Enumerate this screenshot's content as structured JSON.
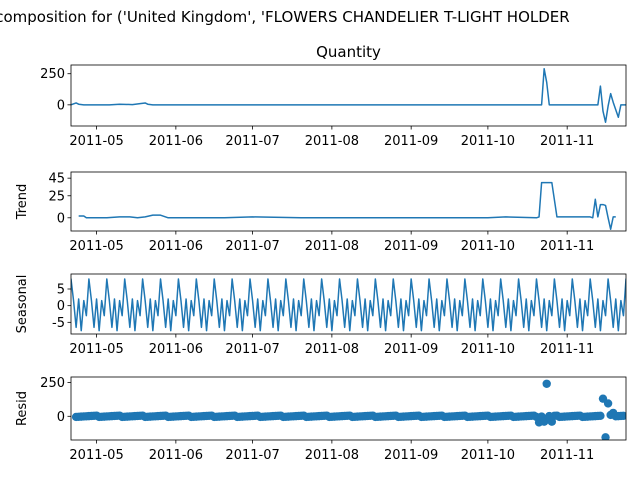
{
  "figure": {
    "suptitle": "ecomposition for ('United Kingdom', 'FLOWERS CHANDELIER T-LIGHT HOLDER",
    "line_color": "#1f77b4"
  },
  "chart_data": [
    {
      "type": "line",
      "title": "Quantity",
      "ylabel": "",
      "xrange": [
        "2011-04-21",
        "2011-11-24"
      ],
      "ylim": [
        -170,
        320
      ],
      "yticks": [
        0,
        250
      ],
      "xticks": [
        {
          "date": "2011-05-01",
          "label": "2011-05"
        },
        {
          "date": "2011-06-01",
          "label": "2011-06"
        },
        {
          "date": "2011-07-01",
          "label": "2011-07"
        },
        {
          "date": "2011-08-01",
          "label": "2011-08"
        },
        {
          "date": "2011-09-01",
          "label": "2011-09"
        },
        {
          "date": "2011-10-01",
          "label": "2011-10"
        },
        {
          "date": "2011-11-01",
          "label": "2011-11"
        }
      ],
      "x": [
        "2011-04-21",
        "2011-04-23",
        "2011-04-24",
        "2011-04-26",
        "2011-05-01",
        "2011-05-06",
        "2011-05-10",
        "2011-05-15",
        "2011-05-18",
        "2011-05-20",
        "2011-05-21",
        "2011-05-23",
        "2011-05-25",
        "2011-06-01",
        "2011-06-10",
        "2011-06-20",
        "2011-07-01",
        "2011-07-15",
        "2011-08-01",
        "2011-08-15",
        "2011-09-01",
        "2011-09-15",
        "2011-10-01",
        "2011-10-15",
        "2011-10-21",
        "2011-10-22",
        "2011-10-23",
        "2011-10-24",
        "2011-10-25",
        "2011-10-26",
        "2011-11-05",
        "2011-11-12",
        "2011-11-13",
        "2011-11-14",
        "2011-11-15",
        "2011-11-16",
        "2011-11-17",
        "2011-11-18",
        "2011-11-19",
        "2011-11-21",
        "2011-11-22",
        "2011-11-24"
      ],
      "values": [
        0,
        15,
        5,
        0,
        0,
        0,
        5,
        2,
        10,
        15,
        5,
        0,
        0,
        0,
        0,
        0,
        0,
        0,
        0,
        0,
        0,
        0,
        0,
        0,
        0,
        0,
        290,
        180,
        0,
        0,
        0,
        0,
        0,
        150,
        -50,
        -140,
        -10,
        90,
        20,
        -100,
        0,
        0
      ]
    },
    {
      "type": "line",
      "title": "",
      "ylabel": "Trend",
      "xrange": [
        "2011-04-21",
        "2011-11-24"
      ],
      "ylim": [
        -15,
        52
      ],
      "yticks": [
        0,
        25
      ],
      "yticks_extra": [
        45
      ],
      "xticks": [
        {
          "date": "2011-05-01",
          "label": "2011-05"
        },
        {
          "date": "2011-06-01",
          "label": "2011-06"
        },
        {
          "date": "2011-07-01",
          "label": "2011-07"
        },
        {
          "date": "2011-08-01",
          "label": "2011-08"
        },
        {
          "date": "2011-09-01",
          "label": "2011-09"
        },
        {
          "date": "2011-10-01",
          "label": "2011-10"
        },
        {
          "date": "2011-11-01",
          "label": "2011-11"
        }
      ],
      "x": [
        "2011-04-24",
        "2011-04-26",
        "2011-04-27",
        "2011-04-29",
        "2011-05-05",
        "2011-05-10",
        "2011-05-14",
        "2011-05-17",
        "2011-05-20",
        "2011-05-23",
        "2011-05-26",
        "2011-05-29",
        "2011-06-10",
        "2011-06-20",
        "2011-07-01",
        "2011-07-20",
        "2011-08-01",
        "2011-09-01",
        "2011-10-01",
        "2011-10-08",
        "2011-10-20",
        "2011-10-21",
        "2011-10-22",
        "2011-10-23",
        "2011-10-25",
        "2011-10-26",
        "2011-10-28",
        "2011-11-02",
        "2011-11-05",
        "2011-11-08",
        "2011-11-10",
        "2011-11-11",
        "2011-11-12",
        "2011-11-13",
        "2011-11-14",
        "2011-11-15",
        "2011-11-16",
        "2011-11-17",
        "2011-11-18",
        "2011-11-19",
        "2011-11-20"
      ],
      "values": [
        2,
        2,
        0,
        0,
        0,
        1,
        1,
        0,
        1,
        3,
        3,
        0,
        0,
        0,
        1,
        0,
        0,
        0,
        0,
        1,
        0,
        1,
        40,
        40,
        40,
        40,
        1,
        1,
        1,
        1,
        1,
        0,
        21,
        1,
        15,
        15,
        14,
        0,
        -13,
        1,
        1
      ]
    },
    {
      "type": "line",
      "title": "",
      "ylabel": "Seasonal",
      "xrange": [
        "2011-04-21",
        "2011-11-24"
      ],
      "ylim": [
        -8.5,
        9.5
      ],
      "yticks": [
        -5,
        0,
        5
      ],
      "period": 7,
      "season_pattern": [
        -7.5,
        1.5,
        -3,
        8,
        1.5,
        -6.5,
        2
      ],
      "xticks": [
        {
          "date": "2011-05-01",
          "label": "2011-05"
        },
        {
          "date": "2011-06-01",
          "label": "2011-06"
        },
        {
          "date": "2011-07-01",
          "label": "2011-07"
        },
        {
          "date": "2011-08-01",
          "label": "2011-08"
        },
        {
          "date": "2011-09-01",
          "label": "2011-09"
        },
        {
          "date": "2011-10-01",
          "label": "2011-10"
        },
        {
          "date": "2011-11-01",
          "label": "2011-11"
        }
      ]
    },
    {
      "type": "scatter",
      "title": "",
      "ylabel": "Resid",
      "xrange": [
        "2011-04-21",
        "2011-11-24"
      ],
      "ylim": [
        -175,
        290
      ],
      "yticks": [
        0,
        250
      ],
      "baseline_value": 0,
      "outliers": [
        {
          "x": "2011-10-21",
          "y": -45
        },
        {
          "x": "2011-10-23",
          "y": -40
        },
        {
          "x": "2011-10-24",
          "y": 240
        },
        {
          "x": "2011-10-26",
          "y": -40
        },
        {
          "x": "2011-11-15",
          "y": 130
        },
        {
          "x": "2011-11-16",
          "y": -155
        },
        {
          "x": "2011-11-17",
          "y": 95
        },
        {
          "x": "2011-11-18",
          "y": 10
        },
        {
          "x": "2011-11-19",
          "y": 25
        }
      ],
      "xticks": [
        {
          "date": "2011-05-01",
          "label": "2011-05"
        },
        {
          "date": "2011-06-01",
          "label": "2011-06"
        },
        {
          "date": "2011-07-01",
          "label": "2011-07"
        },
        {
          "date": "2011-08-01",
          "label": "2011-08"
        },
        {
          "date": "2011-09-01",
          "label": "2011-09"
        },
        {
          "date": "2011-10-01",
          "label": "2011-10"
        },
        {
          "date": "2011-11-01",
          "label": "2011-11"
        }
      ]
    }
  ]
}
